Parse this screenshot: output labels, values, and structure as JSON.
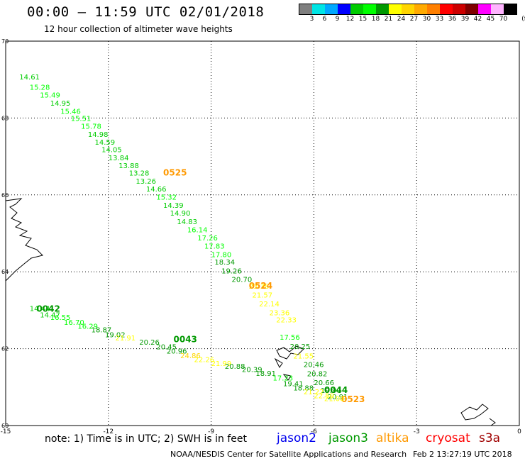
{
  "header": {
    "title": "00:00 – 11:59 UTC 02/01/2018",
    "subtitle": "12 hour collection of altimeter wave heights"
  },
  "legend": {
    "colors": [
      "#7f7f7f",
      "#00e5e5",
      "#00a8ff",
      "#0000ff",
      "#00cc00",
      "#00ff00",
      "#009900",
      "#ffff00",
      "#ffd500",
      "#ffaa00",
      "#ff7f00",
      "#ff0000",
      "#cc0000",
      "#7f0000",
      "#ff00ff",
      "#ffb3ff",
      "#000000"
    ],
    "labels": [
      "3",
      "6",
      "9",
      "12",
      "15",
      "18",
      "21",
      "24",
      "27",
      "30",
      "33",
      "36",
      "39",
      "42",
      "45",
      "70"
    ],
    "unit": "(ft)"
  },
  "footer": {
    "note": "note: 1) Time is in UTC; 2) SWH is in feet",
    "satellites": [
      {
        "name": "jason2",
        "color": "#0000ee"
      },
      {
        "name": "jason3",
        "color": "#009900"
      },
      {
        "name": "altika",
        "color": "#ff9900"
      },
      {
        "name": "cryosat",
        "color": "#ff0000"
      },
      {
        "name": "s3a",
        "color": "#a00000"
      }
    ],
    "credit": "NOAA/NESDIS Center for Satellite Applications and Research",
    "timestamp": "Feb  2 13:27:19 UTC 2018"
  },
  "chart_data": {
    "type": "scatter",
    "xlim": [
      -15,
      0
    ],
    "ylim": [
      60,
      70
    ],
    "x_ticks": [
      -15,
      -12,
      -9,
      -6,
      -3,
      0
    ],
    "y_ticks": [
      60,
      62,
      64,
      66,
      68,
      70
    ],
    "grid": true,
    "color_scale": {
      "thresholds": [
        3,
        6,
        9,
        12,
        15,
        18,
        21,
        24,
        27,
        30,
        33,
        36,
        39,
        42,
        45,
        70
      ]
    },
    "tracks": [
      {
        "time_label": "0525",
        "label_pos": [
          -10.4,
          66.5
        ],
        "label_color": "#ff9900",
        "points": [
          [
            -14.6,
            69.0,
            "14.61"
          ],
          [
            -14.3,
            68.74,
            "15.28"
          ],
          [
            -14.0,
            68.53,
            "15.49"
          ],
          [
            -13.7,
            68.32,
            "14.95"
          ],
          [
            -13.4,
            68.11,
            "15.46"
          ],
          [
            -13.1,
            67.92,
            "15.51"
          ],
          [
            -12.8,
            67.72,
            "15.78"
          ],
          [
            -12.6,
            67.51,
            "14.98"
          ],
          [
            -12.4,
            67.31,
            "14.59"
          ],
          [
            -12.2,
            67.11,
            "14.05"
          ],
          [
            -12.0,
            66.9,
            "13.84"
          ],
          [
            -11.7,
            66.7,
            "13.88"
          ],
          [
            -11.4,
            66.5,
            "13.28"
          ],
          [
            -11.2,
            66.29,
            "13.26"
          ],
          [
            -10.9,
            66.09,
            "14.66"
          ],
          [
            -10.6,
            65.88,
            "15.32"
          ],
          [
            -10.4,
            65.66,
            "14.39"
          ],
          [
            -10.2,
            65.46,
            "14.90"
          ],
          [
            -10.0,
            65.24,
            "14.83"
          ],
          [
            -9.7,
            65.03,
            "16.14"
          ],
          [
            -9.4,
            64.82,
            "17.26"
          ],
          [
            -9.2,
            64.6,
            "17.83"
          ],
          [
            -9.0,
            64.38,
            "17.80"
          ],
          [
            -8.9,
            64.19,
            "18.34"
          ],
          [
            -8.7,
            63.96,
            "19.26"
          ],
          [
            -8.4,
            63.74,
            "20.70"
          ],
          [
            -7.9,
            63.56,
            "23.38"
          ],
          [
            -7.8,
            63.33,
            "21.57"
          ],
          [
            -7.6,
            63.1,
            "22.14"
          ],
          [
            -7.3,
            62.87,
            "23.36"
          ],
          [
            -7.1,
            62.68,
            "22.33"
          ],
          [
            -7.0,
            62.23,
            "17.56"
          ],
          [
            -6.7,
            61.99,
            "20.25"
          ],
          [
            -6.6,
            61.74,
            "21.55"
          ],
          [
            -6.3,
            61.52,
            "20.46"
          ],
          [
            -6.2,
            61.28,
            "20.82"
          ],
          [
            -6.0,
            61.05,
            "20.66"
          ],
          [
            -5.8,
            60.85,
            "19.90"
          ],
          [
            -5.6,
            60.68,
            "20.91"
          ]
        ]
      },
      {
        "time_label": "0524",
        "label_pos": [
          -7.9,
          63.56
        ],
        "label_color": "#ff9900",
        "points": []
      },
      {
        "time_label": "0523",
        "label_pos": [
          -5.2,
          60.61
        ],
        "label_color": "#ff9900",
        "points": []
      },
      {
        "time_label": "0042",
        "label_pos": [
          -14.1,
          62.96
        ],
        "label_color": "#009900",
        "points": [
          [
            -14.3,
            62.98,
            "14.44"
          ],
          [
            -14.0,
            62.81,
            "14.47"
          ],
          [
            -13.7,
            62.75,
            "16.55"
          ],
          [
            -13.3,
            62.62,
            "16.70"
          ],
          [
            -12.9,
            62.52,
            "16.29"
          ],
          [
            -12.5,
            62.43,
            "18.87"
          ],
          [
            -12.1,
            62.3,
            "19.02"
          ],
          [
            -11.8,
            62.21,
            "21.91"
          ],
          [
            -11.1,
            62.1,
            "20.26"
          ],
          [
            -10.6,
            61.98,
            "20.45"
          ],
          [
            -10.3,
            61.87,
            "20.96"
          ],
          [
            -9.9,
            61.75,
            "24.86"
          ],
          [
            -9.5,
            61.65,
            "22.26"
          ],
          [
            -9.0,
            61.55,
            "21.99"
          ],
          [
            -8.6,
            61.48,
            "20.88"
          ],
          [
            -8.1,
            61.39,
            "20.39"
          ],
          [
            -7.7,
            61.29,
            "18.91"
          ],
          [
            -7.2,
            61.17,
            "17.23"
          ],
          [
            -6.9,
            61.02,
            "19.41"
          ],
          [
            -6.6,
            60.91,
            "18.88"
          ],
          [
            -6.3,
            60.81,
            "21.22"
          ],
          [
            -6.0,
            60.71,
            "22.59"
          ],
          [
            -5.7,
            60.64,
            "21.00"
          ]
        ]
      },
      {
        "time_label": "0043",
        "label_pos": [
          -10.1,
          62.17
        ],
        "label_color": "#009900",
        "points": []
      },
      {
        "time_label": "0044",
        "label_pos": [
          -5.7,
          60.85
        ],
        "label_color": "#009900",
        "points": []
      }
    ]
  }
}
